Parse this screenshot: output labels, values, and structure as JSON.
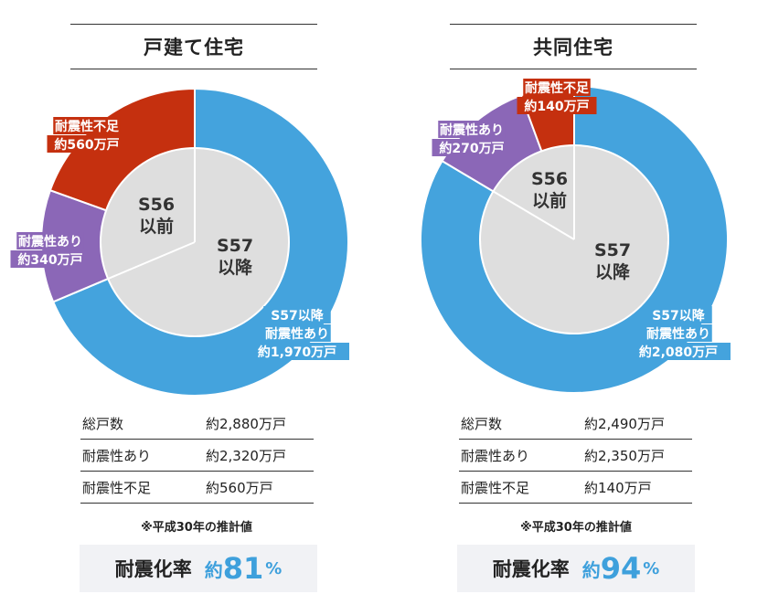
{
  "colors": {
    "blue": "#44a3dd",
    "purple": "#8b67b7",
    "red": "#c5300f",
    "inner": "#dedede"
  },
  "footnote": "※平成30年の推計値",
  "rate_label": "耐震化率",
  "rate_prefix": "約",
  "rate_unit": "%",
  "chart_data": [
    {
      "type": "pie",
      "title": "戸建て住宅",
      "outer_ring": [
        {
          "label_lines": [
            "S57以降",
            "耐震性あり",
            "約1,970万戸"
          ],
          "value": 1970,
          "color": "#44a3dd"
        },
        {
          "label_lines": [
            "耐震性あり",
            "約340万戸"
          ],
          "value": 340,
          "color": "#8b67b7"
        },
        {
          "label_lines": [
            "耐震性不足",
            "約560万戸"
          ],
          "value": 560,
          "color": "#c5300f"
        }
      ],
      "inner_ring": [
        {
          "label_lines": [
            "S57",
            "以降"
          ],
          "value": 1970
        },
        {
          "label_lines": [
            "S56",
            "以前"
          ],
          "value": 900
        }
      ],
      "stats": [
        {
          "label": "総戸数",
          "value": "約2,880万戸"
        },
        {
          "label": "耐震性あり",
          "value": "約2,320万戸"
        },
        {
          "label": "耐震性不足",
          "value": "約560万戸"
        }
      ],
      "rate": "81"
    },
    {
      "type": "pie",
      "title": "共同住宅",
      "outer_ring": [
        {
          "label_lines": [
            "S57以降",
            "耐震性あり",
            "約2,080万戸"
          ],
          "value": 2080,
          "color": "#44a3dd"
        },
        {
          "label_lines": [
            "耐震性あり",
            "約270万戸"
          ],
          "value": 270,
          "color": "#8b67b7"
        },
        {
          "label_lines": [
            "耐震性不足",
            "約140万戸"
          ],
          "value": 140,
          "color": "#c5300f"
        }
      ],
      "inner_ring": [
        {
          "label_lines": [
            "S57",
            "以降"
          ],
          "value": 2080
        },
        {
          "label_lines": [
            "S56",
            "以前"
          ],
          "value": 410
        }
      ],
      "stats": [
        {
          "label": "総戸数",
          "value": "約2,490万戸"
        },
        {
          "label": "耐震性あり",
          "value": "約2,350万戸"
        },
        {
          "label": "耐震性不足",
          "value": "約140万戸"
        }
      ],
      "rate": "94"
    }
  ]
}
